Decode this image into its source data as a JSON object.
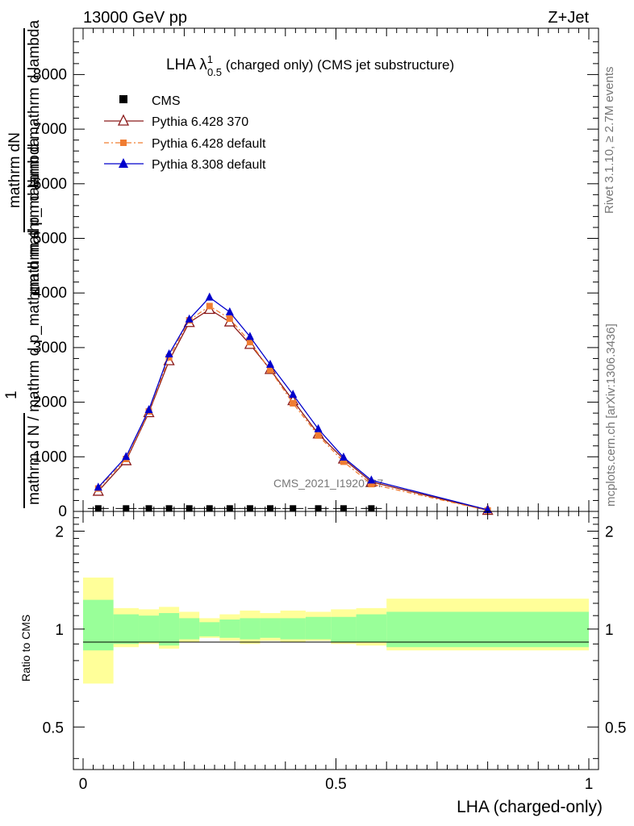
{
  "header": {
    "energy": "13000 GeV pp",
    "process": "Z+Jet"
  },
  "side_labels": {
    "rivet": "Rivet 3.1.10, ≥ 2.7M events",
    "mcplots": "mcplots.cern.ch [arXiv:1306.3436]"
  },
  "main_plot": {
    "title_prefix": "LHA λ",
    "title_sup": "1",
    "title_sub": "0.5",
    "title_suffix": " (charged only) (CMS jet substructure)",
    "ylabel_line1": "mathrm dN",
    "ylabel_line2": "mathrm d p_mathrm d mathrm d lambda",
    "ylabel_line3": "1",
    "ylabel_line4": "mathrm d N / mathrm d p_mathrm d mathrm d lambda",
    "watermark": "CMS_2021_I1920187",
    "yticks": [
      "0",
      "1000",
      "2000",
      "3000",
      "4000",
      "5000",
      "6000",
      "7000",
      "8000"
    ],
    "legend": [
      {
        "label": "CMS",
        "color": "#000000",
        "marker": "square"
      },
      {
        "label": "Pythia 6.428 370",
        "color": "#8b1a1a",
        "marker": "open-triangle"
      },
      {
        "label": "Pythia 6.428 default",
        "color": "#f07d32",
        "marker": "filled-square-dashed"
      },
      {
        "label": "Pythia 8.308 default",
        "color": "#0000cc",
        "marker": "filled-triangle"
      }
    ]
  },
  "ratio_plot": {
    "ylabel": "Ratio to CMS",
    "yticks_left": [
      "0.5",
      "1",
      "2"
    ],
    "yticks_right": [
      "0.5",
      "1",
      "2"
    ]
  },
  "xaxis": {
    "label": "LHA (charged-only)",
    "ticks": [
      "0",
      "0.5",
      "1"
    ]
  },
  "chart_data": {
    "type": "line",
    "xlim": [
      0,
      1
    ],
    "ylim": [
      0,
      8800
    ],
    "x": [
      0.03,
      0.085,
      0.13,
      0.17,
      0.21,
      0.25,
      0.29,
      0.33,
      0.37,
      0.415,
      0.465,
      0.515,
      0.57,
      0.8
    ],
    "series": [
      {
        "name": "CMS",
        "color": "#000000",
        "values": [
          10,
          10,
          10,
          10,
          10,
          10,
          10,
          10,
          10,
          10,
          10,
          10,
          10,
          null
        ]
      },
      {
        "name": "Pythia 6.428 370",
        "color": "#8b1a1a",
        "values": [
          370,
          930,
          1810,
          2760,
          3460,
          3700,
          3470,
          3060,
          2600,
          2030,
          1420,
          960,
          540,
          20
        ]
      },
      {
        "name": "Pythia 6.428 default",
        "color": "#f07d32",
        "values": [
          420,
          960,
          1830,
          2820,
          3500,
          3760,
          3530,
          3100,
          2590,
          1980,
          1390,
          910,
          500,
          18
        ]
      },
      {
        "name": "Pythia 8.308 default",
        "color": "#0000cc",
        "values": [
          440,
          1000,
          1860,
          2880,
          3520,
          3920,
          3650,
          3200,
          2690,
          2140,
          1510,
          990,
          570,
          30
        ]
      }
    ],
    "ratio": {
      "ylim": [
        0.37,
        2.3
      ],
      "log_scale": true,
      "reference": 1,
      "bins": [
        0.0,
        0.06,
        0.11,
        0.15,
        0.19,
        0.23,
        0.27,
        0.31,
        0.35,
        0.39,
        0.44,
        0.49,
        0.54,
        0.6,
        1.0
      ],
      "inner_band": [
        [
          0.86,
          1.23
        ],
        [
          0.9,
          1.11
        ],
        [
          0.91,
          1.1
        ],
        [
          0.89,
          1.12
        ],
        [
          0.93,
          1.08
        ],
        [
          0.95,
          1.05
        ],
        [
          0.94,
          1.07
        ],
        [
          0.93,
          1.08
        ],
        [
          0.94,
          1.08
        ],
        [
          0.93,
          1.08
        ],
        [
          0.93,
          1.09
        ],
        [
          0.91,
          1.09
        ],
        [
          0.91,
          1.11
        ],
        [
          0.88,
          1.13
        ]
      ],
      "outer_band": [
        [
          0.68,
          1.44
        ],
        [
          0.88,
          1.16
        ],
        [
          0.9,
          1.15
        ],
        [
          0.87,
          1.17
        ],
        [
          0.91,
          1.13
        ],
        [
          0.94,
          1.08
        ],
        [
          0.92,
          1.11
        ],
        [
          0.9,
          1.14
        ],
        [
          0.92,
          1.12
        ],
        [
          0.91,
          1.14
        ],
        [
          0.92,
          1.13
        ],
        [
          0.9,
          1.15
        ],
        [
          0.89,
          1.16
        ],
        [
          0.86,
          1.24
        ]
      ]
    }
  }
}
